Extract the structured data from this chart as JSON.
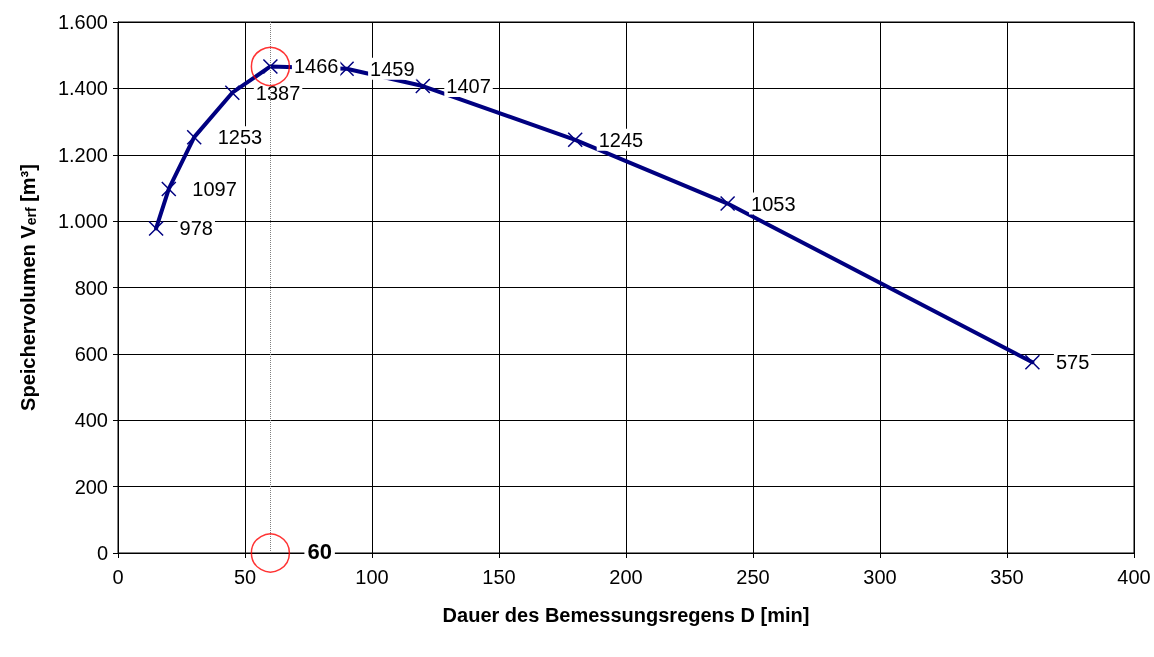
{
  "chart_data": {
    "type": "line",
    "xlabel": "Dauer des Bemessungsregens D [min]",
    "ylabel": "Speichervolumen V$_{erf}$ [m³]",
    "xlim": [
      0,
      400
    ],
    "xticks": [
      0,
      50,
      100,
      150,
      200,
      250,
      300,
      350,
      400
    ],
    "ylim": [
      0,
      1600
    ],
    "yticks": [
      0,
      200,
      400,
      600,
      800,
      {
        "value": 1000,
        "label": "1.000"
      },
      {
        "value": 1200,
        "label": "1.200"
      },
      {
        "value": 1400,
        "label": "1.400"
      },
      {
        "value": 1600,
        "label": "1.600"
      }
    ],
    "grid": true,
    "marker": "cross",
    "line_style": "solid",
    "data_labels": true,
    "series": [
      {
        "color": "#000080",
        "x": [
          15,
          20,
          30,
          45,
          60,
          90,
          120,
          180,
          240,
          360
        ],
        "values": [
          978,
          1097,
          1253,
          1387,
          1466,
          1459,
          1407,
          1245,
          1053,
          575
        ]
      },
      {
        "type": "scatter",
        "marker": "circle",
        "color": "#ff0000",
        "x": [
          60,
          60
        ],
        "values": [
          1466,
          0
        ],
        "value_labels": [
          null,
          null
        ]
      }
    ],
    "ref_lines": [
      {
        "axis": "x",
        "value": 60,
        "color": "#808080",
        "line_style": "dotted"
      }
    ],
    "annotations": [
      {
        "text": "60",
        "x": 60,
        "y": 0
      }
    ]
  }
}
